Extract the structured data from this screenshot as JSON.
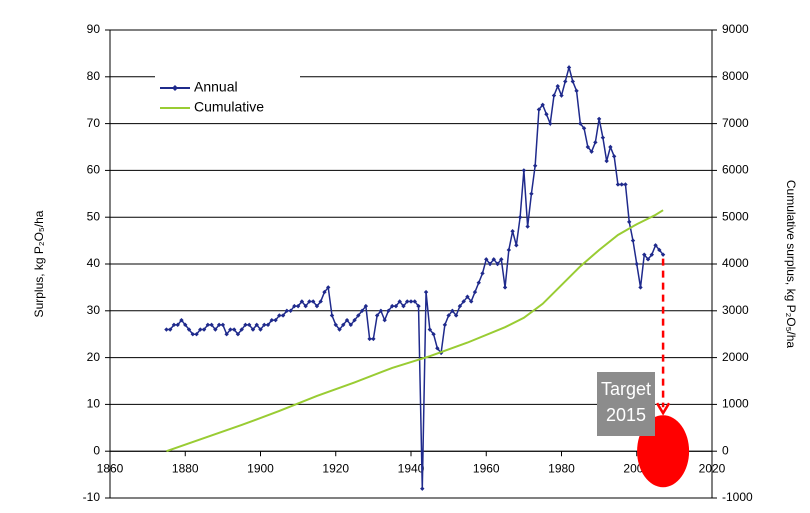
{
  "chart_data": {
    "type": "line",
    "y_label": "Surplus, kg P₂O₅/ha",
    "y2_label": "Cumulative surplus, kg P₂O₅/ha",
    "xlim": [
      1860,
      2020
    ],
    "xticks": [
      1860,
      1880,
      1900,
      1920,
      1940,
      1960,
      1980,
      2000,
      2020
    ],
    "ylim": [
      -10,
      90
    ],
    "yticks": [
      -10,
      0,
      10,
      20,
      30,
      40,
      50,
      60,
      70,
      80,
      90
    ],
    "y2lim": [
      -1000,
      9000
    ],
    "y2ticks": [
      -1000,
      0,
      1000,
      2000,
      3000,
      4000,
      5000,
      6000,
      7000,
      8000,
      9000
    ],
    "grid": true,
    "legend": "upper left",
    "series": [
      {
        "name": "Annual",
        "color": "#1f2a8c",
        "marker": "diamond",
        "x": [
          1875,
          1876,
          1877,
          1878,
          1879,
          1880,
          1881,
          1882,
          1883,
          1884,
          1885,
          1886,
          1887,
          1888,
          1889,
          1890,
          1891,
          1892,
          1893,
          1894,
          1895,
          1896,
          1897,
          1898,
          1899,
          1900,
          1901,
          1902,
          1903,
          1904,
          1905,
          1906,
          1907,
          1908,
          1909,
          1910,
          1911,
          1912,
          1913,
          1914,
          1915,
          1916,
          1917,
          1918,
          1919,
          1920,
          1921,
          1922,
          1923,
          1924,
          1925,
          1926,
          1927,
          1928,
          1929,
          1930,
          1931,
          1932,
          1933,
          1934,
          1935,
          1936,
          1937,
          1938,
          1939,
          1940,
          1941,
          1942,
          1943,
          1944,
          1945,
          1946,
          1947,
          1948,
          1949,
          1950,
          1951,
          1952,
          1953,
          1954,
          1955,
          1956,
          1957,
          1958,
          1959,
          1960,
          1961,
          1962,
          1963,
          1964,
          1965,
          1966,
          1967,
          1968,
          1969,
          1970,
          1971,
          1972,
          1973,
          1974,
          1975,
          1976,
          1977,
          1978,
          1979,
          1980,
          1981,
          1982,
          1983,
          1984,
          1985,
          1986,
          1987,
          1988,
          1989,
          1990,
          1991,
          1992,
          1993,
          1994,
          1995,
          1996,
          1997,
          1998,
          1999,
          2000,
          2001,
          2002,
          2003,
          2004,
          2005,
          2006,
          2007
        ],
        "values": [
          26,
          26,
          27,
          27,
          28,
          27,
          26,
          25,
          25,
          26,
          26,
          27,
          27,
          26,
          27,
          27,
          25,
          26,
          26,
          25,
          26,
          27,
          27,
          26,
          27,
          26,
          27,
          27,
          28,
          28,
          29,
          29,
          30,
          30,
          31,
          31,
          32,
          31,
          32,
          32,
          31,
          32,
          34,
          35,
          29,
          27,
          26,
          27,
          28,
          27,
          28,
          29,
          30,
          31,
          24,
          24,
          29,
          30,
          28,
          30,
          31,
          31,
          32,
          31,
          32,
          32,
          32,
          31,
          -8,
          34,
          26,
          25,
          22,
          21,
          27,
          29,
          30,
          29,
          31,
          32,
          33,
          32,
          34,
          36,
          38,
          41,
          40,
          41,
          40,
          41,
          35,
          43,
          47,
          44,
          50,
          60,
          48,
          55,
          61,
          73,
          74,
          72,
          70,
          76,
          78,
          76,
          79,
          82,
          79,
          77,
          70,
          69,
          65,
          64,
          66,
          71,
          67,
          62,
          65,
          63,
          57,
          57,
          57,
          49,
          45,
          40,
          35,
          42,
          41,
          42,
          44,
          43,
          42
        ]
      },
      {
        "name": "Cumulative",
        "color": "#99cc33",
        "axis": "y2",
        "x": [
          1875,
          1885,
          1895,
          1905,
          1915,
          1925,
          1935,
          1945,
          1955,
          1965,
          1970,
          1975,
          1980,
          1985,
          1990,
          1995,
          2000,
          2005,
          2007
        ],
        "values": [
          0,
          280,
          560,
          860,
          1180,
          1470,
          1780,
          2030,
          2320,
          2650,
          2850,
          3150,
          3550,
          3950,
          4300,
          4620,
          4850,
          5050,
          5150
        ]
      }
    ],
    "annotations": {
      "target": [
        "Target",
        "2015"
      ]
    }
  }
}
